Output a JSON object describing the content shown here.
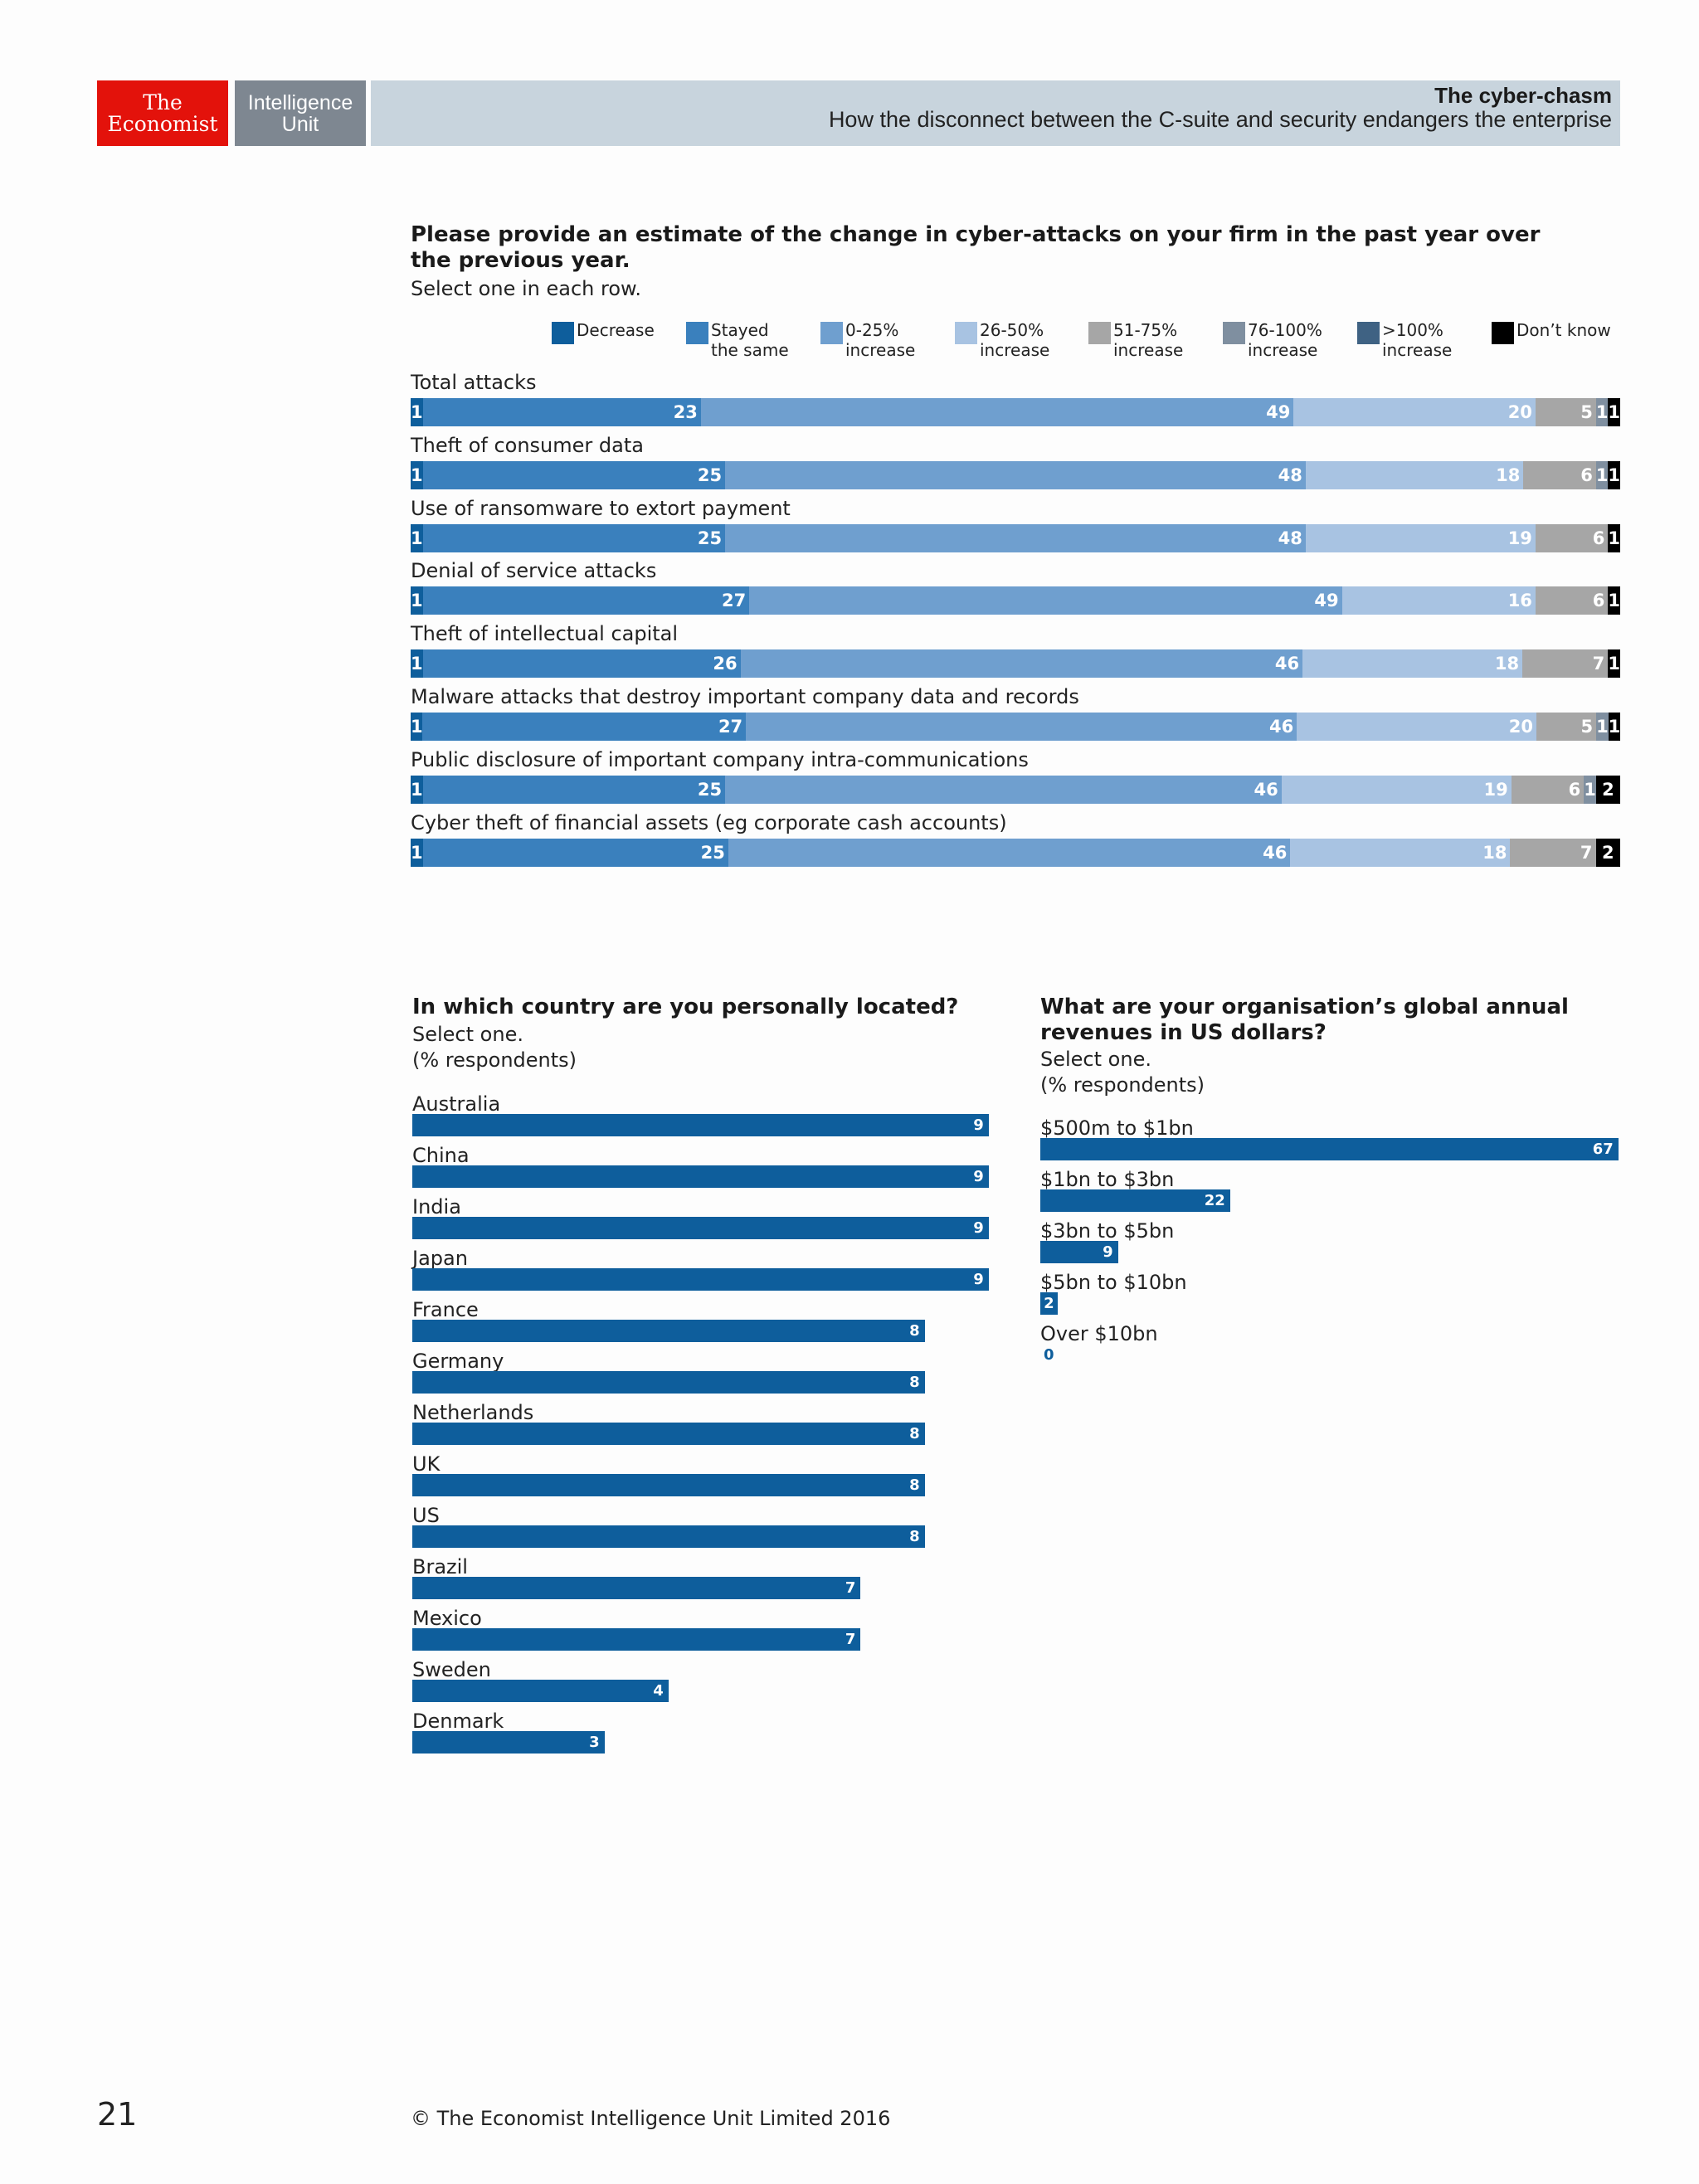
{
  "header": {
    "logo_line1": "The",
    "logo_line2": "Economist",
    "eiu_line1": "Intelligence",
    "eiu_line2": "Unit",
    "title": "The cyber-chasm",
    "subtitle": "How the disconnect between the C-suite and security endangers the enterprise"
  },
  "q1": {
    "title": "Please provide an estimate of the change in cyber-attacks on your firm in the past year over the previous year.",
    "instruction": "Select one in each row."
  },
  "q2": {
    "title": "In which country are you personally located?",
    "instruction": "Select one.",
    "unit": "(% respondents)"
  },
  "q3": {
    "title": "What are your organisation’s global annual revenues in US dollars?",
    "instruction": "Select one.",
    "unit": "(% respondents)"
  },
  "chart_data": [
    {
      "type": "bar",
      "stacked": true,
      "orientation": "horizontal",
      "categories": [
        "Total attacks",
        "Theft of consumer data",
        "Use of ransomware to extort payment",
        "Denial of service attacks",
        "Theft of intellectual capital",
        "Malware attacks that destroy important company data and records",
        "Public disclosure of important company intra-communications",
        "Cyber theft of financial assets (eg corporate cash accounts)"
      ],
      "series": [
        {
          "name": "Decrease",
          "color": "#0e5e9c",
          "values": [
            1,
            1,
            1,
            1,
            1,
            1,
            1,
            1
          ]
        },
        {
          "name": "Stayed\nthe same",
          "color": "#3a80bd",
          "values": [
            23,
            25,
            25,
            27,
            26,
            27,
            25,
            25
          ]
        },
        {
          "name": "0-25%\nincrease",
          "color": "#6f9fcf",
          "values": [
            49,
            48,
            48,
            49,
            46,
            46,
            46,
            46
          ]
        },
        {
          "name": "26-50%\nincrease",
          "color": "#a8c3e2",
          "values": [
            20,
            18,
            19,
            16,
            18,
            20,
            19,
            18
          ]
        },
        {
          "name": "51-75%\nincrease",
          "color": "#a6a6a6",
          "values": [
            5,
            6,
            6,
            6,
            7,
            5,
            6,
            7
          ]
        },
        {
          "name": "76-100%\nincrease",
          "color": "#7f8fa0",
          "values": [
            1,
            1,
            0,
            0,
            0,
            1,
            1,
            0
          ]
        },
        {
          "name": ">100%\nincrease",
          "color": "#3f6283",
          "values": [
            0,
            0,
            0,
            0,
            0,
            0,
            0,
            0
          ]
        },
        {
          "name": "Don’t know",
          "color": "#000000",
          "values": [
            1,
            1,
            1,
            1,
            1,
            1,
            2,
            2
          ]
        }
      ],
      "legend_position": "top"
    },
    {
      "type": "bar",
      "orientation": "horizontal",
      "color": "#0e5e9c",
      "categories": [
        "Australia",
        "China",
        "India",
        "Japan",
        "France",
        "Germany",
        "Netherlands",
        "UK",
        "US",
        "Brazil",
        "Mexico",
        "Sweden",
        "Denmark"
      ],
      "values": [
        9,
        9,
        9,
        9,
        8,
        8,
        8,
        8,
        8,
        7,
        7,
        4,
        3
      ]
    },
    {
      "type": "bar",
      "orientation": "horizontal",
      "color": "#0e5e9c",
      "categories": [
        "$500m to $1bn",
        "$1bn to $3bn",
        "$3bn to $5bn",
        "$5bn to $10bn",
        "Over $10bn"
      ],
      "values": [
        67,
        22,
        9,
        2,
        0
      ]
    }
  ],
  "footer": {
    "page_number": "21",
    "copyright": "© The Economist Intelligence Unit Limited 2016"
  }
}
